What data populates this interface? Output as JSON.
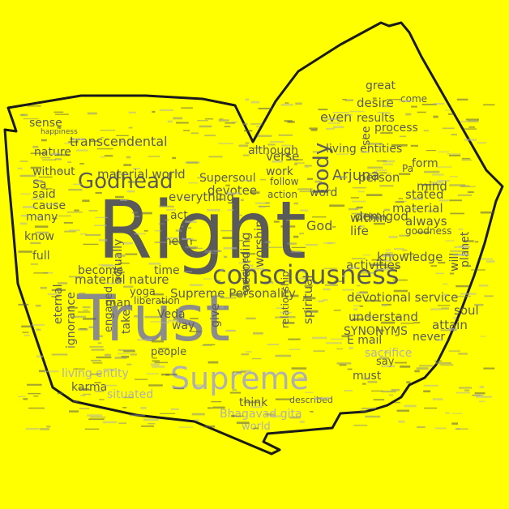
{
  "colors": {
    "background": "#ffff00",
    "outline": "#1a1a1a",
    "word_dark": "#5a5a5a",
    "word_mid": "#8c8c8c",
    "word_light": "#b0b0b0"
  },
  "words": [
    {
      "text": "Right",
      "tone": "dark"
    },
    {
      "text": "Trust",
      "tone": "mid"
    },
    {
      "text": "Supreme",
      "tone": "light"
    },
    {
      "text": "consciousness",
      "tone": "dark"
    },
    {
      "text": "Godhead",
      "tone": "dark"
    },
    {
      "text": "body",
      "tone": "dark"
    },
    {
      "text": "Arjuna",
      "tone": "dark"
    },
    {
      "text": "transcendental",
      "tone": "dark"
    },
    {
      "text": "devotional service",
      "tone": "dark"
    },
    {
      "text": "Supreme Personality",
      "tone": "dark"
    },
    {
      "text": "living entities",
      "tone": "dark"
    },
    {
      "text": "material nature",
      "tone": "dark"
    },
    {
      "text": "material world",
      "tone": "dark"
    },
    {
      "text": "understand",
      "tone": "dark"
    },
    {
      "text": "knowledge",
      "tone": "dark"
    },
    {
      "text": "activities",
      "tone": "dark"
    },
    {
      "text": "worship",
      "tone": "dark"
    },
    {
      "text": "spiritual",
      "tone": "dark"
    },
    {
      "text": "according",
      "tone": "dark"
    },
    {
      "text": "everything",
      "tone": "dark"
    },
    {
      "text": "devotee",
      "tone": "dark"
    },
    {
      "text": "demigod",
      "tone": "dark"
    },
    {
      "text": "stated",
      "tone": "dark"
    },
    {
      "text": "person",
      "tone": "dark"
    },
    {
      "text": "material",
      "tone": "dark"
    },
    {
      "text": "always",
      "tone": "dark"
    },
    {
      "text": "life",
      "tone": "dark"
    },
    {
      "text": "within",
      "tone": "dark"
    },
    {
      "text": "goodness",
      "tone": "dark"
    },
    {
      "text": "process",
      "tone": "dark"
    },
    {
      "text": "desire",
      "tone": "dark"
    },
    {
      "text": "great",
      "tone": "dark"
    },
    {
      "text": "come",
      "tone": "dark"
    },
    {
      "text": "form",
      "tone": "dark"
    },
    {
      "text": "even",
      "tone": "dark"
    },
    {
      "text": "results",
      "tone": "dark"
    },
    {
      "text": "mind",
      "tone": "dark"
    },
    {
      "text": "verse",
      "tone": "dark"
    },
    {
      "text": "although",
      "tone": "dark"
    },
    {
      "text": "action",
      "tone": "dark"
    },
    {
      "text": "word",
      "tone": "dark"
    },
    {
      "text": "work",
      "tone": "dark"
    },
    {
      "text": "follow",
      "tone": "dark"
    },
    {
      "text": "God",
      "tone": "dark"
    },
    {
      "text": "Supersoul",
      "tone": "dark"
    },
    {
      "text": "sense",
      "tone": "dark"
    },
    {
      "text": "nature",
      "tone": "dark"
    },
    {
      "text": "without",
      "tone": "dark"
    },
    {
      "text": "said",
      "tone": "dark"
    },
    {
      "text": "cause",
      "tone": "dark"
    },
    {
      "text": "many",
      "tone": "dark"
    },
    {
      "text": "know",
      "tone": "dark"
    },
    {
      "text": "full",
      "tone": "dark"
    },
    {
      "text": "eternal",
      "tone": "dark"
    },
    {
      "text": "ignorance",
      "tone": "dark"
    },
    {
      "text": "engaged",
      "tone": "dark"
    },
    {
      "text": "become",
      "tone": "dark"
    },
    {
      "text": "actually",
      "tone": "dark"
    },
    {
      "text": "act",
      "tone": "dark"
    },
    {
      "text": "mean",
      "tone": "dark"
    },
    {
      "text": "time",
      "tone": "dark"
    },
    {
      "text": "man",
      "tone": "dark"
    },
    {
      "text": "yoga",
      "tone": "dark"
    },
    {
      "text": "take",
      "tone": "dark"
    },
    {
      "text": "Veda",
      "tone": "dark"
    },
    {
      "text": "way",
      "tone": "dark"
    },
    {
      "text": "people",
      "tone": "dark"
    },
    {
      "text": "give",
      "tone": "dark"
    },
    {
      "text": "relationship",
      "tone": "dark"
    },
    {
      "text": "explained",
      "tone": "dark"
    },
    {
      "text": "SYNONYMS",
      "tone": "dark"
    },
    {
      "text": "E mail",
      "tone": "dark"
    },
    {
      "text": "sacrifice",
      "tone": "light"
    },
    {
      "text": "say",
      "tone": "dark"
    },
    {
      "text": "never",
      "tone": "dark"
    },
    {
      "text": "attain",
      "tone": "dark"
    },
    {
      "text": "soul",
      "tone": "dark"
    },
    {
      "text": "must",
      "tone": "dark"
    },
    {
      "text": "think",
      "tone": "dark"
    },
    {
      "text": "described",
      "tone": "dark"
    },
    {
      "text": "Bhagavad gita",
      "tone": "light"
    },
    {
      "text": "world",
      "tone": "light"
    },
    {
      "text": "living entity",
      "tone": "light"
    },
    {
      "text": "karma",
      "tone": "dark"
    },
    {
      "text": "situated",
      "tone": "light"
    },
    {
      "text": "planet",
      "tone": "dark"
    },
    {
      "text": "will",
      "tone": "dark"
    },
    {
      "text": "see",
      "tone": "dark"
    },
    {
      "text": "liberation",
      "tone": "dark"
    },
    {
      "text": "Sa",
      "tone": "dark"
    },
    {
      "text": "happiness",
      "tone": "dark"
    },
    {
      "text": "Pa",
      "tone": "dark"
    }
  ]
}
